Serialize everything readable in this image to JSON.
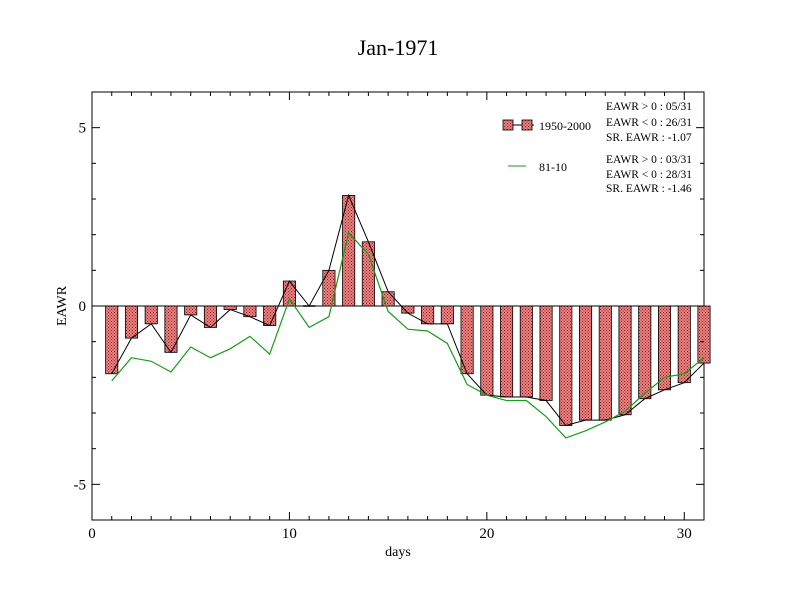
{
  "chart_data": {
    "type": "bar",
    "title": "Jan-1971",
    "xlabel": "days",
    "ylabel": "EAWR",
    "xlim": [
      0,
      31
    ],
    "ylim": [
      -6,
      6
    ],
    "x_ticks": [
      0,
      10,
      20,
      30
    ],
    "y_ticks": [
      -5,
      0,
      5
    ],
    "x_tick_labels": [
      "0",
      "10",
      "20",
      "30"
    ],
    "y_tick_labels": [
      "-5",
      "0",
      "5"
    ],
    "grid": false,
    "legend_position": "top-right",
    "days": [
      1,
      2,
      3,
      4,
      5,
      6,
      7,
      8,
      9,
      10,
      11,
      12,
      13,
      14,
      15,
      16,
      17,
      18,
      19,
      20,
      21,
      22,
      23,
      24,
      25,
      26,
      27,
      28,
      29,
      30,
      31
    ],
    "series": [
      {
        "name": "1950-2000",
        "kind": "bar",
        "color": "#f08080",
        "values": [
          -1.9,
          -0.9,
          -0.5,
          -1.3,
          -0.25,
          -0.6,
          -0.1,
          -0.3,
          -0.55,
          0.7,
          0.0,
          1.0,
          3.1,
          1.8,
          0.4,
          -0.2,
          -0.5,
          -0.5,
          -1.9,
          -2.5,
          -2.55,
          -2.55,
          -2.65,
          -3.35,
          -3.2,
          -3.2,
          -3.05,
          -2.6,
          -2.35,
          -2.15,
          -1.6
        ],
        "stats": [
          "EAWR > 0 : 05/31",
          "EAWR < 0 : 26/31",
          "SR. EAWR : -1.07"
        ]
      },
      {
        "name": "81-10",
        "kind": "line",
        "color": "#1a9a1a",
        "values": [
          -2.1,
          -1.45,
          -1.55,
          -1.85,
          -1.15,
          -1.45,
          -1.2,
          -0.85,
          -1.35,
          0.2,
          -0.6,
          -0.3,
          2.05,
          1.45,
          -0.15,
          -0.65,
          -0.7,
          -1.05,
          -2.2,
          -2.5,
          -2.65,
          -2.65,
          -3.1,
          -3.7,
          -3.5,
          -3.25,
          -2.95,
          -2.45,
          -2.0,
          -1.9,
          -1.45
        ],
        "stats": [
          "EAWR > 0 : 03/31",
          "EAWR < 0 : 28/31",
          "SR. EAWR : -1.46"
        ]
      }
    ],
    "bar_outline_line_color": "#000000"
  }
}
